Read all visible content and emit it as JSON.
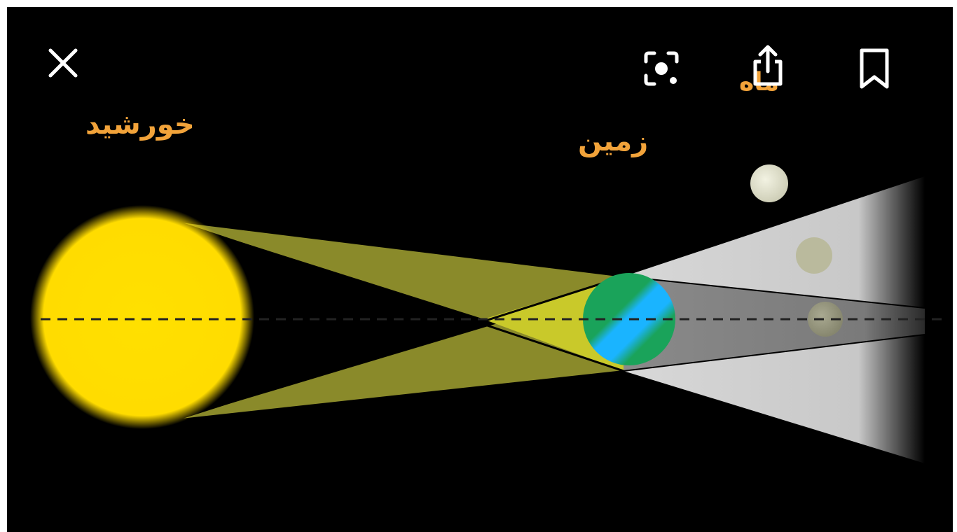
{
  "diagram": {
    "labels": {
      "sun": "خورشید",
      "earth": "زمین",
      "moon": "ماه"
    },
    "colors": {
      "background": "#000000",
      "sun": "#ffe000",
      "label": "#f2a33a",
      "penumbra_cone": "#8a8a2a",
      "umbra_cone": "#c9c92a",
      "earth_green": "#1aa35a",
      "earth_blue": "#1ab4ff",
      "earth_shadow": "#808080",
      "penumbra_shadow": "#d6d6d6",
      "moon": "#e6e6d2"
    }
  },
  "toolbar": {
    "close": {
      "icon": "close-icon"
    },
    "lens": {
      "icon": "lens-icon"
    },
    "share": {
      "icon": "share-icon"
    },
    "save": {
      "icon": "bookmark-icon"
    }
  }
}
